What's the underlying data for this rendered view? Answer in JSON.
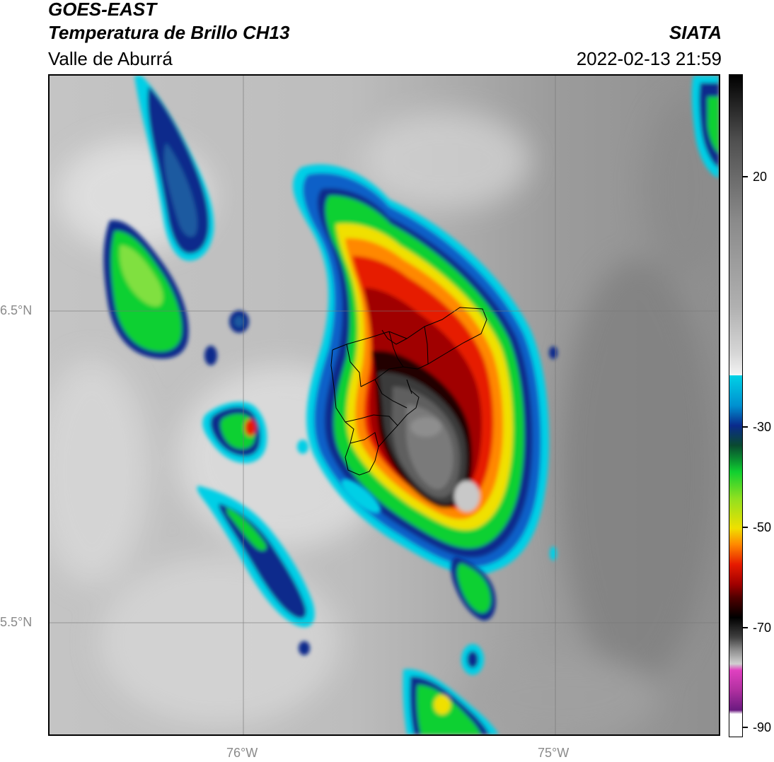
{
  "header": {
    "satellite": "GOES-EAST",
    "product": "Temperatura de Brillo CH13",
    "region": "Valle de Aburrá",
    "agency": "SIATA",
    "datetime": "2022-02-13 21:59"
  },
  "map": {
    "lat_labels": [
      "6.5°N",
      "5.5°N"
    ],
    "lon_labels": [
      "76°W",
      "75°W"
    ],
    "grid": true
  },
  "colorbar": {
    "labels": [
      "20",
      "-30",
      "-50",
      "-70",
      "-90"
    ],
    "palette": {
      "warm_gray": "#8a8a8a",
      "light_gray": "#f0f0f0",
      "cyan": "#00d2e6",
      "dark_blue": "#0a2a8c",
      "green": "#10d030",
      "yellow": "#f0e000",
      "orange": "#ff8800",
      "red": "#e61a00",
      "dark_red": "#500000",
      "black": "#000000",
      "magenta": "#e040c0",
      "purple": "#6a1a80"
    }
  }
}
